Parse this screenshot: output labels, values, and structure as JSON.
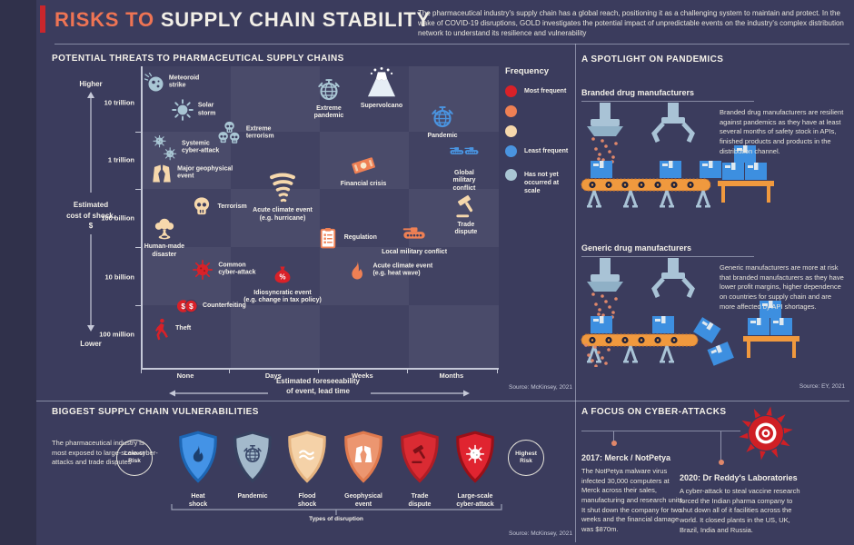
{
  "header": {
    "title_accent": "RISKS TO",
    "title_rest": " SUPPLY CHAIN STABILITY",
    "intro": "The pharmaceutical industry's supply chain has a global reach, positioning it as a challenging system to maintain and protect. In the wake of COVID-19 disruptions, GOLD investigates the potential impact of unpredictable events on the industry's complex distribution network to understand its resilience and vulnerability"
  },
  "threats": {
    "heading": "POTENTIAL THREATS TO PHARMACEUTICAL SUPPLY CHAINS",
    "source": "Source: McKinsey, 2021"
  },
  "chart_data": {
    "type": "scatter",
    "xlabel": "Estimated foreseeability\nof event, lead time",
    "ylabel": "Estimated cost of shock, $",
    "y_axis_top": "Higher",
    "y_axis_bottom": "Lower",
    "x_ticks": [
      "None",
      "Days",
      "Weeks",
      "Months"
    ],
    "y_ticks": [
      "10 trillion",
      "1 trillion",
      "100 billion",
      "10 billion",
      "100 million"
    ],
    "legend": {
      "title": "Frequency",
      "entries": [
        {
          "label": "Most frequent",
          "color": "#d92128"
        },
        {
          "label": "",
          "color": "#ef8054"
        },
        {
          "label": "",
          "color": "#f6d8ac"
        },
        {
          "label": "Least frequent",
          "color": "#4a94e0"
        },
        {
          "label": "Has not yet occurred at scale",
          "color": "#a9c6d4"
        }
      ]
    },
    "frequency_colors": {
      "most": "#d92128",
      "high": "#ef8054",
      "medium": "#f6d8ac",
      "least": "#4a94e0",
      "not_yet": "#a9c6d4"
    },
    "items": [
      {
        "label": "Meteoroid\nstrike",
        "icon": "meteor",
        "frequency": "not_yet",
        "x_pct": 3.8,
        "y_pct": 5.4,
        "label_pos": "right",
        "size": 24
      },
      {
        "label": "Solar\nstorm",
        "icon": "sun",
        "frequency": "not_yet",
        "x_pct": 11.7,
        "y_pct": 14.5,
        "label_pos": "right",
        "size": 26
      },
      {
        "label": "Systemic\ncyber-attack",
        "icon": "bugs",
        "frequency": "not_yet",
        "x_pct": 6.9,
        "y_pct": 27.1,
        "label_pos": "right",
        "size": 28
      },
      {
        "label": "Extreme\nterrorism",
        "icon": "skulls",
        "frequency": "not_yet",
        "x_pct": 24.7,
        "y_pct": 22.3,
        "label_pos": "right",
        "size": 30
      },
      {
        "label": "Major geophysical\nevent",
        "icon": "quake",
        "frequency": "medium",
        "x_pct": 5.9,
        "y_pct": 35.5,
        "label_pos": "right",
        "size": 26
      },
      {
        "label": "Extreme\npandemic",
        "icon": "globe",
        "frequency": "not_yet",
        "x_pct": 52.8,
        "y_pct": 7.8,
        "label_pos": "below",
        "size": 30
      },
      {
        "label": "Supervolcano",
        "icon": "volcano",
        "frequency": "not_yet",
        "color": "#e6eef5",
        "x_pct": 67.6,
        "y_pct": 5.7,
        "label_pos": "below",
        "size": 38
      },
      {
        "label": "Pandemic",
        "icon": "globe",
        "frequency": "least",
        "x_pct": 84.7,
        "y_pct": 16.9,
        "label_pos": "below",
        "size": 30
      },
      {
        "label": "Global\nmilitary\nconflict",
        "icon": "tanks2",
        "frequency": "least",
        "x_pct": 90.8,
        "y_pct": 28.6,
        "label_pos": "below",
        "size": 34
      },
      {
        "label": "Financial crisis",
        "icon": "money",
        "frequency": "high",
        "x_pct": 62.5,
        "y_pct": 32.8,
        "label_pos": "below",
        "size": 30
      },
      {
        "label": "Terrorism",
        "icon": "skull",
        "frequency": "medium",
        "x_pct": 17.1,
        "y_pct": 46.7,
        "label_pos": "right",
        "size": 27
      },
      {
        "label": "Acute climate event\n(e.g. hurricane)",
        "icon": "tornado",
        "frequency": "medium",
        "x_pct": 39.8,
        "y_pct": 40.4,
        "label_pos": "below",
        "size": 38
      },
      {
        "label": "Human-made\ndisaster",
        "icon": "mushroom",
        "frequency": "medium",
        "x_pct": 6.6,
        "y_pct": 53.9,
        "label_pos": "below",
        "size": 29
      },
      {
        "label": "Trade\ndispute",
        "icon": "gavel",
        "frequency": "medium",
        "x_pct": 91.3,
        "y_pct": 46.4,
        "label_pos": "below",
        "size": 30
      },
      {
        "label": "Regulation",
        "icon": "clipboard",
        "frequency": "high",
        "x_pct": 52.6,
        "y_pct": 56.9,
        "label_pos": "right",
        "size": 27
      },
      {
        "label": "Local military conflict",
        "icon": "tank",
        "frequency": "high",
        "x_pct": 76.8,
        "y_pct": 55.7,
        "label_pos": "below",
        "size": 28
      },
      {
        "label": "Common\ncyber-attack",
        "icon": "bug",
        "frequency": "most",
        "x_pct": 17.3,
        "y_pct": 67.5,
        "label_pos": "right",
        "size": 27
      },
      {
        "label": "Idiosyncratic event\n(e.g. change in tax policy)",
        "icon": "bag",
        "frequency": "most",
        "x_pct": 39.8,
        "y_pct": 69.3,
        "label_pos": "below",
        "size": 27
      },
      {
        "label": "Acute climate event\n(e.g. heat wave)",
        "icon": "flame",
        "frequency": "high",
        "x_pct": 60.7,
        "y_pct": 67.8,
        "label_pos": "right",
        "size": 27
      },
      {
        "label": "Counterfeiting",
        "icon": "coins",
        "frequency": "most",
        "x_pct": 13.0,
        "y_pct": 79.5,
        "label_pos": "right",
        "size": 26
      },
      {
        "label": "Theft",
        "icon": "thief",
        "frequency": "most",
        "x_pct": 5.4,
        "y_pct": 87.0,
        "label_pos": "right",
        "size": 26
      }
    ]
  },
  "pandemics": {
    "heading": "A SPOTLIGHT ON PANDEMICS",
    "source": "Source: EY, 2021",
    "branded": {
      "title": "Branded drug manufacturers",
      "text": "Branded drug manufacturers are resilient against pandemics as they have at least several months of safety stock in APIs, finished products and products in the distribution channel."
    },
    "generic": {
      "title": "Generic drug manufacturers",
      "text": "Generic manufacturers are more at risk that branded manufacturers as they have lower profit margins, higher dependence on countries for supply chain and are more affected by API shortages."
    }
  },
  "vulnerabilities": {
    "heading": "BIGGEST SUPPLY CHAIN VULNERABILITIES",
    "text": "The pharmaceutical industry is most exposed to large-scale cyber-attacks and trade disputes",
    "lowest_badge": "Lowest\nRisk",
    "highest_badge": "Highest\nRisk",
    "axis_label": "Types of disruption",
    "source": "Source: McKinsey, 2021",
    "shields": [
      {
        "label": "Heat\nshock",
        "icon": "flame",
        "fill": "#4493e6",
        "border": "#1d66b4",
        "icon_color": "#1c3f6e"
      },
      {
        "label": "Pandemic",
        "icon": "globe",
        "fill": "#a3b9cb",
        "border": "#36415f",
        "icon_color": "#3b4a6b"
      },
      {
        "label": "Flood\nshock",
        "icon": "wave",
        "fill": "#f5d2a8",
        "border": "#e5b37f",
        "icon_color": "#ffffff"
      },
      {
        "label": "Geophysical\nevent",
        "icon": "quake",
        "fill": "#ec9670",
        "border": "#e07a4e",
        "icon_color": "#ffffff"
      },
      {
        "label": "Trade\ndispute",
        "icon": "gavel",
        "fill": "#da2b33",
        "border": "#b01d25",
        "icon_color": "#7e1118"
      },
      {
        "label": "Large-scale\ncyber-attack",
        "icon": "bug",
        "fill": "#e02430",
        "border": "#991018",
        "icon_color": "#ffffff"
      }
    ]
  },
  "cyber": {
    "heading": "A FOCUS ON CYBER-ATTACKS",
    "events": [
      {
        "title": "2017: Merck / NotPetya",
        "text": "The NotPetya malware virus infected 30,000 computers at Merck across their sales, manufacturing and research units. It shut down the company for two weeks and the financial damage was $870m."
      },
      {
        "title": "2020: Dr Reddy's Laboratories",
        "text": "A cyber-attack to steal vaccine research forced the Indian pharma company to shut down all of it facilities across the world. It closed plants in the US, UK, Brazil, India and Russia."
      }
    ]
  }
}
